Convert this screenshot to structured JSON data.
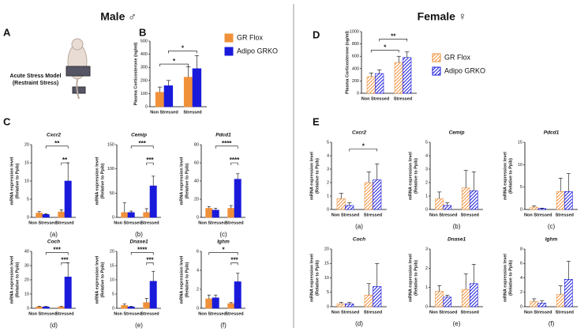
{
  "sections": [
    "Male ♂",
    "Female ♀"
  ],
  "panel_letters": [
    "A",
    "B",
    "C",
    "D",
    "E"
  ],
  "stress_model": [
    "Acute Stress Model",
    "(Restraint Stress)"
  ],
  "chart_data": [
    {
      "type": "bar",
      "ylabel": [
        "Plasma Corticosterone (ng/ml)"
      ],
      "categories": [
        "Non Stressed",
        "Stressed"
      ],
      "ylim": [
        0,
        500
      ],
      "yticks": [
        0,
        100,
        200,
        300,
        400,
        500
      ],
      "hatch": false,
      "series": [
        {
          "name": "GR Flox",
          "color": "#f0913a",
          "values": [
            110,
            225
          ],
          "errors": [
            40,
            80
          ]
        },
        {
          "name": "Adipo GRKO",
          "color": "#1a1adb",
          "values": [
            160,
            290
          ],
          "errors": [
            40,
            100
          ]
        }
      ],
      "annotations": [
        "*",
        "*"
      ]
    },
    {
      "type": "bar",
      "title": "Cxcr2",
      "panel": "(a)",
      "ylabel": [
        "mRNA expression level",
        "(Relative to Ppib)"
      ],
      "categories": [
        "Non Stressed",
        "Stressed"
      ],
      "ylim": [
        0,
        20
      ],
      "yticks": [
        0,
        5,
        10,
        15,
        20
      ],
      "hatch": false,
      "series": [
        {
          "color": "#f0913a",
          "values": [
            1.2,
            1.5
          ],
          "errors": [
            0.4,
            0.6
          ]
        },
        {
          "color": "#1a1adb",
          "values": [
            0.8,
            10
          ],
          "errors": [
            0.2,
            5
          ]
        }
      ],
      "annotations": [
        "**",
        "**"
      ]
    },
    {
      "type": "bar",
      "title": "Cemip",
      "panel": "(b)",
      "ylabel": [
        "mRNA expression level",
        "(Relative to Ppib)"
      ],
      "categories": [
        "Non Stressed",
        "Stressed"
      ],
      "ylim": [
        0,
        150
      ],
      "yticks": [
        0,
        50,
        100,
        150
      ],
      "hatch": false,
      "series": [
        {
          "color": "#f0913a",
          "values": [
            10,
            10
          ],
          "errors": [
            20,
            8
          ]
        },
        {
          "color": "#1a1adb",
          "values": [
            10,
            65
          ],
          "errors": [
            3,
            20
          ]
        }
      ],
      "annotations": [
        "***",
        "***"
      ]
    },
    {
      "type": "bar",
      "title": "Pdcd1",
      "panel": "(c)",
      "ylabel": [
        "mRNA expression level",
        "(Relative to Ppib)"
      ],
      "categories": [
        "Non Stressed",
        "Stressed"
      ],
      "ylim": [
        0,
        80
      ],
      "yticks": [
        0,
        20,
        40,
        60,
        80
      ],
      "hatch": false,
      "series": [
        {
          "color": "#f0913a",
          "values": [
            10,
            10
          ],
          "errors": [
            2,
            3
          ]
        },
        {
          "color": "#1a1adb",
          "values": [
            8,
            42
          ],
          "errors": [
            2,
            6
          ]
        }
      ],
      "annotations": [
        "****",
        "****"
      ]
    },
    {
      "type": "bar",
      "title": "Coch",
      "panel": "(d)",
      "ylabel": [
        "mRNA expression level",
        "(Relative to Ppib)"
      ],
      "categories": [
        "Non Stressed",
        "Stressed"
      ],
      "ylim": [
        0,
        40
      ],
      "yticks": [
        0,
        10,
        20,
        30,
        40
      ],
      "hatch": false,
      "series": [
        {
          "color": "#f0913a",
          "values": [
            1,
            1
          ],
          "errors": [
            0.5,
            0.3
          ]
        },
        {
          "color": "#1a1adb",
          "values": [
            1,
            22
          ],
          "errors": [
            0.3,
            10
          ]
        }
      ],
      "annotations": [
        "***",
        "***"
      ]
    },
    {
      "type": "bar",
      "title": "Dnase1",
      "panel": "(e)",
      "ylabel": [
        "mRNA expression level",
        "(Relative to Ppib)"
      ],
      "categories": [
        "Non Stressed",
        "Stressed"
      ],
      "ylim": [
        0,
        20
      ],
      "yticks": [
        0,
        5,
        10,
        15,
        20
      ],
      "hatch": false,
      "series": [
        {
          "color": "#f0913a",
          "values": [
            1,
            2
          ],
          "errors": [
            0.5,
            1.5
          ]
        },
        {
          "color": "#1a1adb",
          "values": [
            0.5,
            9.5
          ],
          "errors": [
            0.2,
            3.5
          ]
        }
      ],
      "annotations": [
        "****",
        "***"
      ]
    },
    {
      "type": "bar",
      "title": "Ighm",
      "panel": "(f)",
      "ylabel": [
        "mRNA expression level",
        "(Relative to Ppib)"
      ],
      "categories": [
        "Non Stressed",
        "Stressed"
      ],
      "ylim": [
        0,
        6
      ],
      "yticks": [
        0,
        2,
        4,
        6
      ],
      "hatch": false,
      "series": [
        {
          "color": "#f0913a",
          "values": [
            1,
            0.5
          ],
          "errors": [
            0.4,
            0.1
          ]
        },
        {
          "color": "#1a1adb",
          "values": [
            1.1,
            2.8
          ],
          "errors": [
            0.3,
            0.9
          ]
        }
      ],
      "annotations": [
        "*",
        "***"
      ]
    },
    {
      "type": "bar",
      "ylabel": [
        "Plasma Corticosterone (ng/ml)"
      ],
      "categories": [
        "Non Stressed",
        "Stressed"
      ],
      "ylim": [
        0,
        1000
      ],
      "yticks": [
        0,
        200,
        400,
        600,
        800,
        1000
      ],
      "hatch": true,
      "series": [
        {
          "name": "GR Flox",
          "color": "#f0913a",
          "values": [
            270,
            500
          ],
          "errors": [
            60,
            100
          ]
        },
        {
          "name": "Adipo GRKO",
          "color": "#1a1adb",
          "values": [
            320,
            580
          ],
          "errors": [
            60,
            90
          ]
        }
      ],
      "annotations": [
        "*",
        "**"
      ]
    },
    {
      "type": "bar",
      "title": "Cxcr2",
      "panel": "(a)",
      "ylabel": [
        "mRNA expression level",
        "(Relative to Ppib)"
      ],
      "categories": [
        "Non Stressed",
        "Stressed"
      ],
      "ylim": [
        0,
        5
      ],
      "yticks": [
        0,
        1,
        2,
        3,
        4,
        5
      ],
      "hatch": true,
      "series": [
        {
          "color": "#f0913a",
          "values": [
            0.8,
            2
          ],
          "errors": [
            0.4,
            0.8
          ]
        },
        {
          "color": "#1a1adb",
          "values": [
            0.3,
            2.2
          ],
          "errors": [
            0.2,
            1.2
          ]
        }
      ],
      "annotations": [
        "*"
      ]
    },
    {
      "type": "bar",
      "title": "Cemip",
      "panel": "(b)",
      "ylabel": [
        "mRNA expression level",
        "(Relative to Ppib)"
      ],
      "categories": [
        "Non Stressed",
        "Stressed"
      ],
      "ylim": [
        0,
        5
      ],
      "yticks": [
        0,
        1,
        2,
        3,
        4,
        5
      ],
      "hatch": true,
      "series": [
        {
          "color": "#f0913a",
          "values": [
            0.8,
            1.6
          ],
          "errors": [
            0.5,
            1.3
          ]
        },
        {
          "color": "#1a1adb",
          "values": [
            0.3,
            1.4
          ],
          "errors": [
            0.2,
            1.4
          ]
        }
      ],
      "annotations": []
    },
    {
      "type": "bar",
      "title": "Pdcd1",
      "panel": "(c)",
      "ylabel": [
        "mRNA expression level",
        "(Relative to Ppib)"
      ],
      "categories": [
        "Non Stressed",
        "Stressed"
      ],
      "ylim": [
        0,
        15
      ],
      "yticks": [
        0,
        5,
        10,
        15
      ],
      "hatch": true,
      "series": [
        {
          "color": "#f0913a",
          "values": [
            0.5,
            4
          ],
          "errors": [
            0.3,
            3
          ]
        },
        {
          "color": "#1a1adb",
          "values": [
            0.2,
            4
          ],
          "errors": [
            0.1,
            4
          ]
        }
      ],
      "annotations": []
    },
    {
      "type": "bar",
      "title": "Coch",
      "panel": "(d)",
      "ylabel": [
        "mRNA expression level",
        "(Relative to Ppib)"
      ],
      "categories": [
        "Non Stressed",
        "Stressed"
      ],
      "ylim": [
        0,
        20
      ],
      "yticks": [
        0,
        5,
        10,
        15,
        20
      ],
      "hatch": true,
      "series": [
        {
          "color": "#f0913a",
          "values": [
            1,
            4
          ],
          "errors": [
            0.5,
            4
          ]
        },
        {
          "color": "#1a1adb",
          "values": [
            1,
            7
          ],
          "errors": [
            0.5,
            8
          ]
        }
      ],
      "annotations": []
    },
    {
      "type": "bar",
      "title": "Dnase1",
      "panel": "(e)",
      "ylabel": [
        "mRNA expression level",
        "(Relative to Ppib)"
      ],
      "categories": [
        "Non Stressed",
        "Stressed"
      ],
      "ylim": [
        0,
        3
      ],
      "yticks": [
        0,
        1,
        2,
        3
      ],
      "hatch": true,
      "series": [
        {
          "color": "#f0913a",
          "values": [
            0.8,
            0.9
          ],
          "errors": [
            0.3,
            0.8
          ]
        },
        {
          "color": "#1a1adb",
          "values": [
            0.5,
            1.2
          ],
          "errors": [
            0.1,
            1
          ]
        }
      ],
      "annotations": []
    },
    {
      "type": "bar",
      "title": "Ighm",
      "panel": "(f)",
      "ylabel": [
        "mRNA expression level",
        "(Relative to Ppib)"
      ],
      "categories": [
        "Non Stressed",
        "Stressed"
      ],
      "ylim": [
        0,
        8
      ],
      "yticks": [
        0,
        2,
        4,
        6,
        8
      ],
      "hatch": true,
      "series": [
        {
          "color": "#f0913a",
          "values": [
            0.7,
            1.7
          ],
          "errors": [
            0.4,
            1.2
          ]
        },
        {
          "color": "#1a1adb",
          "values": [
            0.5,
            3.8
          ],
          "errors": [
            0.3,
            2.5
          ]
        }
      ],
      "annotations": []
    }
  ]
}
